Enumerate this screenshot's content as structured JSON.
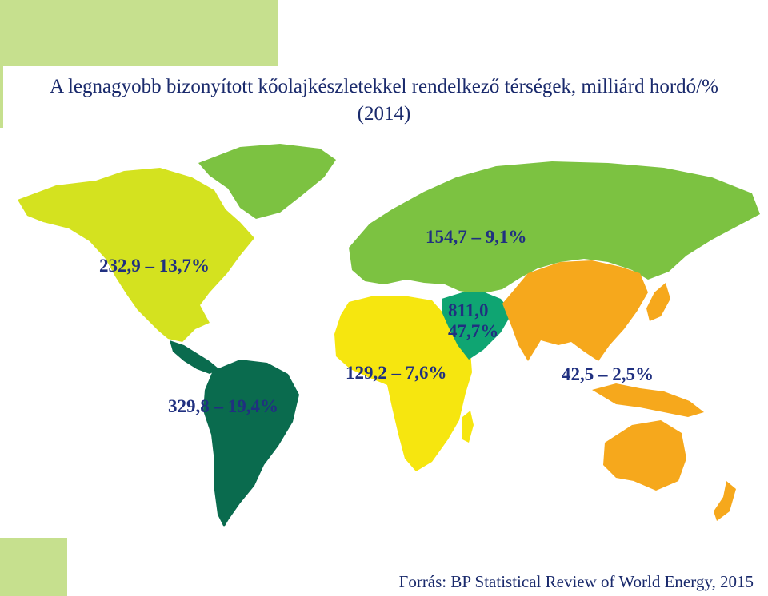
{
  "title": {
    "line1": "A legnagyobb bizonyított kőolajkészletekkel rendelkező térségek, milliárd hordó/%",
    "line2": "(2014)"
  },
  "regions": [
    {
      "id": "north-america",
      "label": "232,9 – 13,7%",
      "value": 232.9,
      "share": 13.7,
      "color": "#d4e21f"
    },
    {
      "id": "south-central-america",
      "label": "329,8 – 19,4%",
      "value": 329.8,
      "share": 19.4,
      "color": "#0a6b4e"
    },
    {
      "id": "europe-eurasia",
      "label": "154,7 – 9,1%",
      "value": 154.7,
      "share": 9.1,
      "color": "#7cc241"
    },
    {
      "id": "middle-east",
      "label_line1": "811,0",
      "label_line2": "47,7%",
      "value": 811.0,
      "share": 47.7,
      "color": "#0fa572"
    },
    {
      "id": "africa",
      "label": "129,2 – 7,6%",
      "value": 129.2,
      "share": 7.6,
      "color": "#f6e60f"
    },
    {
      "id": "asia-pacific",
      "label": "42,5 – 2,5%",
      "value": 42.5,
      "share": 2.5,
      "color": "#f6a81c"
    }
  ],
  "source": "Forrás: BP Statistical Review of World Energy, 2015",
  "colors": {
    "title": "#1a2a6c",
    "labels": "#203080",
    "accent": "#c6e08e"
  }
}
